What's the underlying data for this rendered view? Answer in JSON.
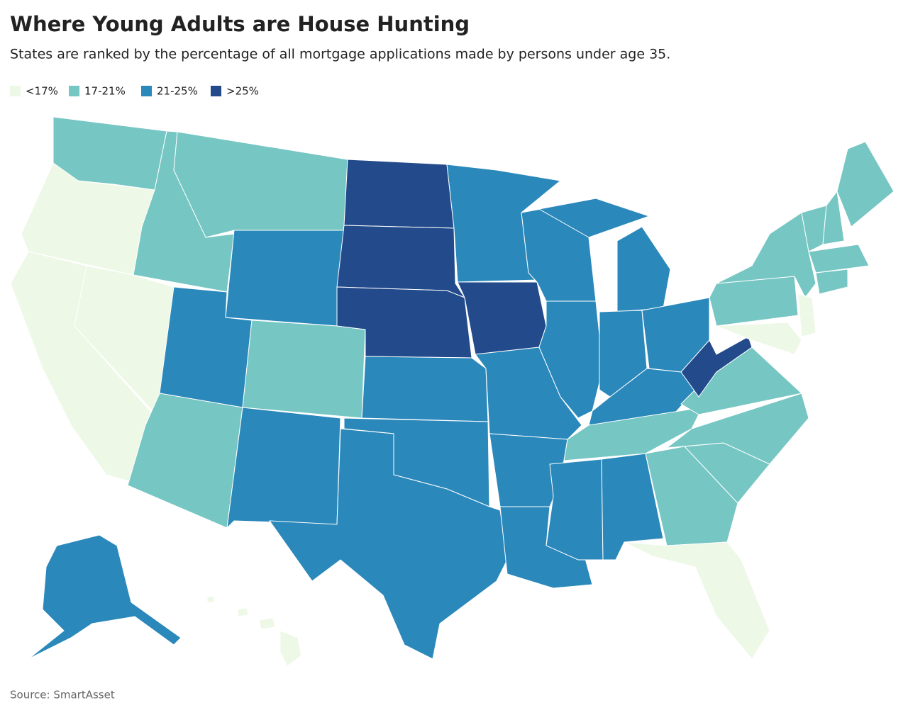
{
  "header": {
    "title": "Where Young Adults are House Hunting",
    "subtitle": "States are ranked by the percentage of all mortgage applications made by persons under age 35."
  },
  "legend": {
    "items": [
      {
        "label": "<17%",
        "color": "#eef8e6"
      },
      {
        "label": "17-21%",
        "color": "#76c6c3"
      },
      {
        "label": "21-25%",
        "color": "#2b88bb"
      },
      {
        "label": ">25%",
        "color": "#234b8b"
      }
    ]
  },
  "footer": {
    "source": "Source: SmartAsset"
  }
}
